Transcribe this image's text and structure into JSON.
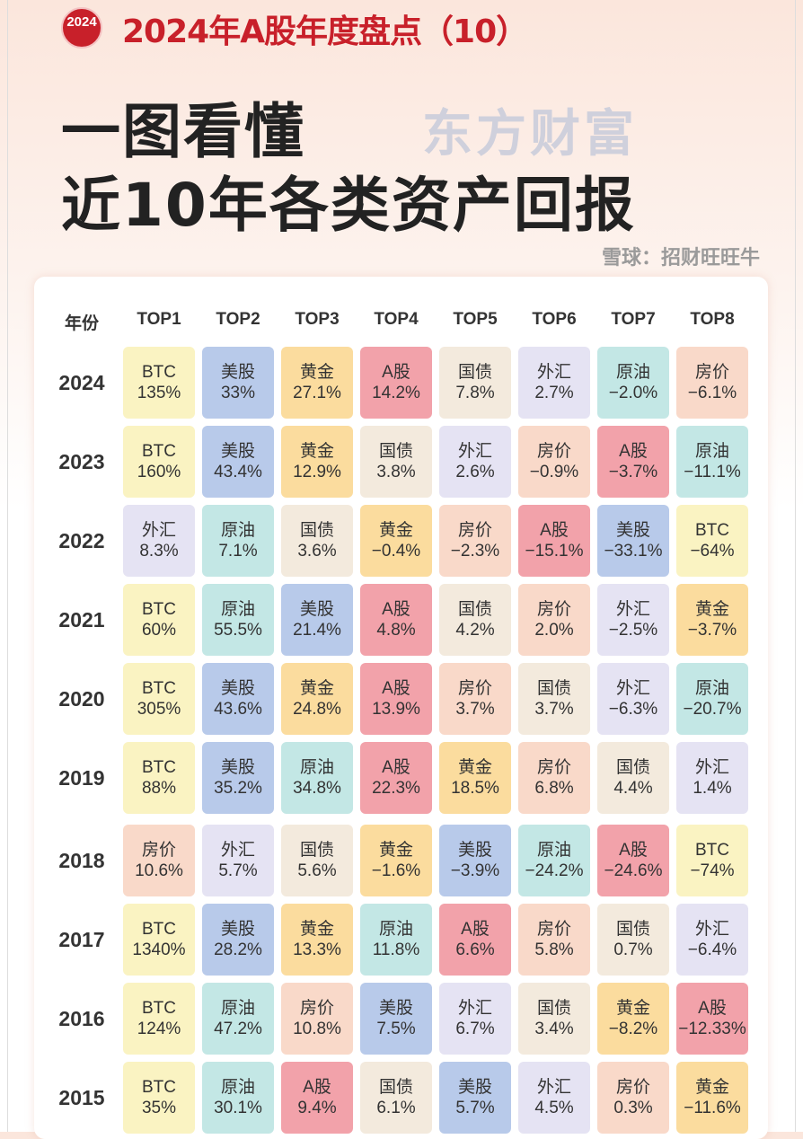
{
  "badge": "2024",
  "subtitle": "2024年A股年度盘点（10）",
  "title_line1": "一图看懂",
  "title_line2": "近10年各类资产回报",
  "headers": [
    "年份",
    "TOP1",
    "TOP2",
    "TOP3",
    "TOP4",
    "TOP5",
    "TOP6",
    "TOP7",
    "TOP8"
  ],
  "colors": {
    "BTC": "#faf3c2",
    "美股": "#b8caea",
    "黄金": "#fbdc9e",
    "A股": "#f2a2aa",
    "国债": "#f3eadd",
    "外汇": "#e5e3f3",
    "原油": "#c3e7e5",
    "房价": "#f9d9c9"
  },
  "rows": [
    {
      "year": "2024",
      "cells": [
        [
          "BTC",
          "135%"
        ],
        [
          "美股",
          "33%"
        ],
        [
          "黄金",
          "27.1%"
        ],
        [
          "A股",
          "14.2%"
        ],
        [
          "国债",
          "7.8%"
        ],
        [
          "外汇",
          "2.7%"
        ],
        [
          "原油",
          "−2.0%"
        ],
        [
          "房价",
          "−6.1%"
        ]
      ]
    },
    {
      "year": "2023",
      "cells": [
        [
          "BTC",
          "160%"
        ],
        [
          "美股",
          "43.4%"
        ],
        [
          "黄金",
          "12.9%"
        ],
        [
          "国债",
          "3.8%"
        ],
        [
          "外汇",
          "2.6%"
        ],
        [
          "房价",
          "−0.9%"
        ],
        [
          "A股",
          "−3.7%"
        ],
        [
          "原油",
          "−11.1%"
        ]
      ]
    },
    {
      "year": "2022",
      "cells": [
        [
          "外汇",
          "8.3%"
        ],
        [
          "原油",
          "7.1%"
        ],
        [
          "国债",
          "3.6%"
        ],
        [
          "黄金",
          "−0.4%"
        ],
        [
          "房价",
          "−2.3%"
        ],
        [
          "A股",
          "−15.1%"
        ],
        [
          "美股",
          "−33.1%"
        ],
        [
          "BTC",
          "−64%"
        ]
      ]
    },
    {
      "year": "2021",
      "cells": [
        [
          "BTC",
          "60%"
        ],
        [
          "原油",
          "55.5%"
        ],
        [
          "美股",
          "21.4%"
        ],
        [
          "A股",
          "4.8%"
        ],
        [
          "国债",
          "4.2%"
        ],
        [
          "房价",
          "2.0%"
        ],
        [
          "外汇",
          "−2.5%"
        ],
        [
          "黄金",
          "−3.7%"
        ]
      ]
    },
    {
      "year": "2020",
      "cells": [
        [
          "BTC",
          "305%"
        ],
        [
          "美股",
          "43.6%"
        ],
        [
          "黄金",
          "24.8%"
        ],
        [
          "A股",
          "13.9%"
        ],
        [
          "房价",
          "3.7%"
        ],
        [
          "国债",
          "3.7%"
        ],
        [
          "外汇",
          "−6.3%"
        ],
        [
          "原油",
          "−20.7%"
        ]
      ]
    },
    {
      "year": "2019",
      "cells": [
        [
          "BTC",
          "88%"
        ],
        [
          "美股",
          "35.2%"
        ],
        [
          "原油",
          "34.8%"
        ],
        [
          "A股",
          "22.3%"
        ],
        [
          "黄金",
          "18.5%"
        ],
        [
          "房价",
          "6.8%"
        ],
        [
          "国债",
          "4.4%"
        ],
        [
          "外汇",
          "1.4%"
        ]
      ]
    },
    {
      "year": "2018",
      "cells": [
        [
          "房价",
          "10.6%"
        ],
        [
          "外汇",
          "5.7%"
        ],
        [
          "国债",
          "5.6%"
        ],
        [
          "黄金",
          "−1.6%"
        ],
        [
          "美股",
          "−3.9%"
        ],
        [
          "原油",
          "−24.2%"
        ],
        [
          "A股",
          "−24.6%"
        ],
        [
          "BTC",
          "−74%"
        ]
      ]
    },
    {
      "year": "2017",
      "cells": [
        [
          "BTC",
          "1340%"
        ],
        [
          "美股",
          "28.2%"
        ],
        [
          "黄金",
          "13.3%"
        ],
        [
          "原油",
          "11.8%"
        ],
        [
          "A股",
          "6.6%"
        ],
        [
          "房价",
          "5.8%"
        ],
        [
          "国债",
          "0.7%"
        ],
        [
          "外汇",
          "−6.4%"
        ]
      ]
    },
    {
      "year": "2016",
      "cells": [
        [
          "BTC",
          "124%"
        ],
        [
          "原油",
          "47.2%"
        ],
        [
          "房价",
          "10.8%"
        ],
        [
          "美股",
          "7.5%"
        ],
        [
          "外汇",
          "6.7%"
        ],
        [
          "国债",
          "3.4%"
        ],
        [
          "黄金",
          "−8.2%"
        ],
        [
          "A股",
          "−12.33%"
        ]
      ]
    },
    {
      "year": "2015",
      "cells": [
        [
          "BTC",
          "35%"
        ],
        [
          "原油",
          "30.1%"
        ],
        [
          "A股",
          "9.4%"
        ],
        [
          "国债",
          "6.1%"
        ],
        [
          "美股",
          "5.7%"
        ],
        [
          "外汇",
          "4.5%"
        ],
        [
          "房价",
          "0.3%"
        ],
        [
          "黄金",
          "−11.6%"
        ]
      ]
    }
  ],
  "watermark": "东方财富",
  "watermark2": "雪球：招财旺旺牛"
}
